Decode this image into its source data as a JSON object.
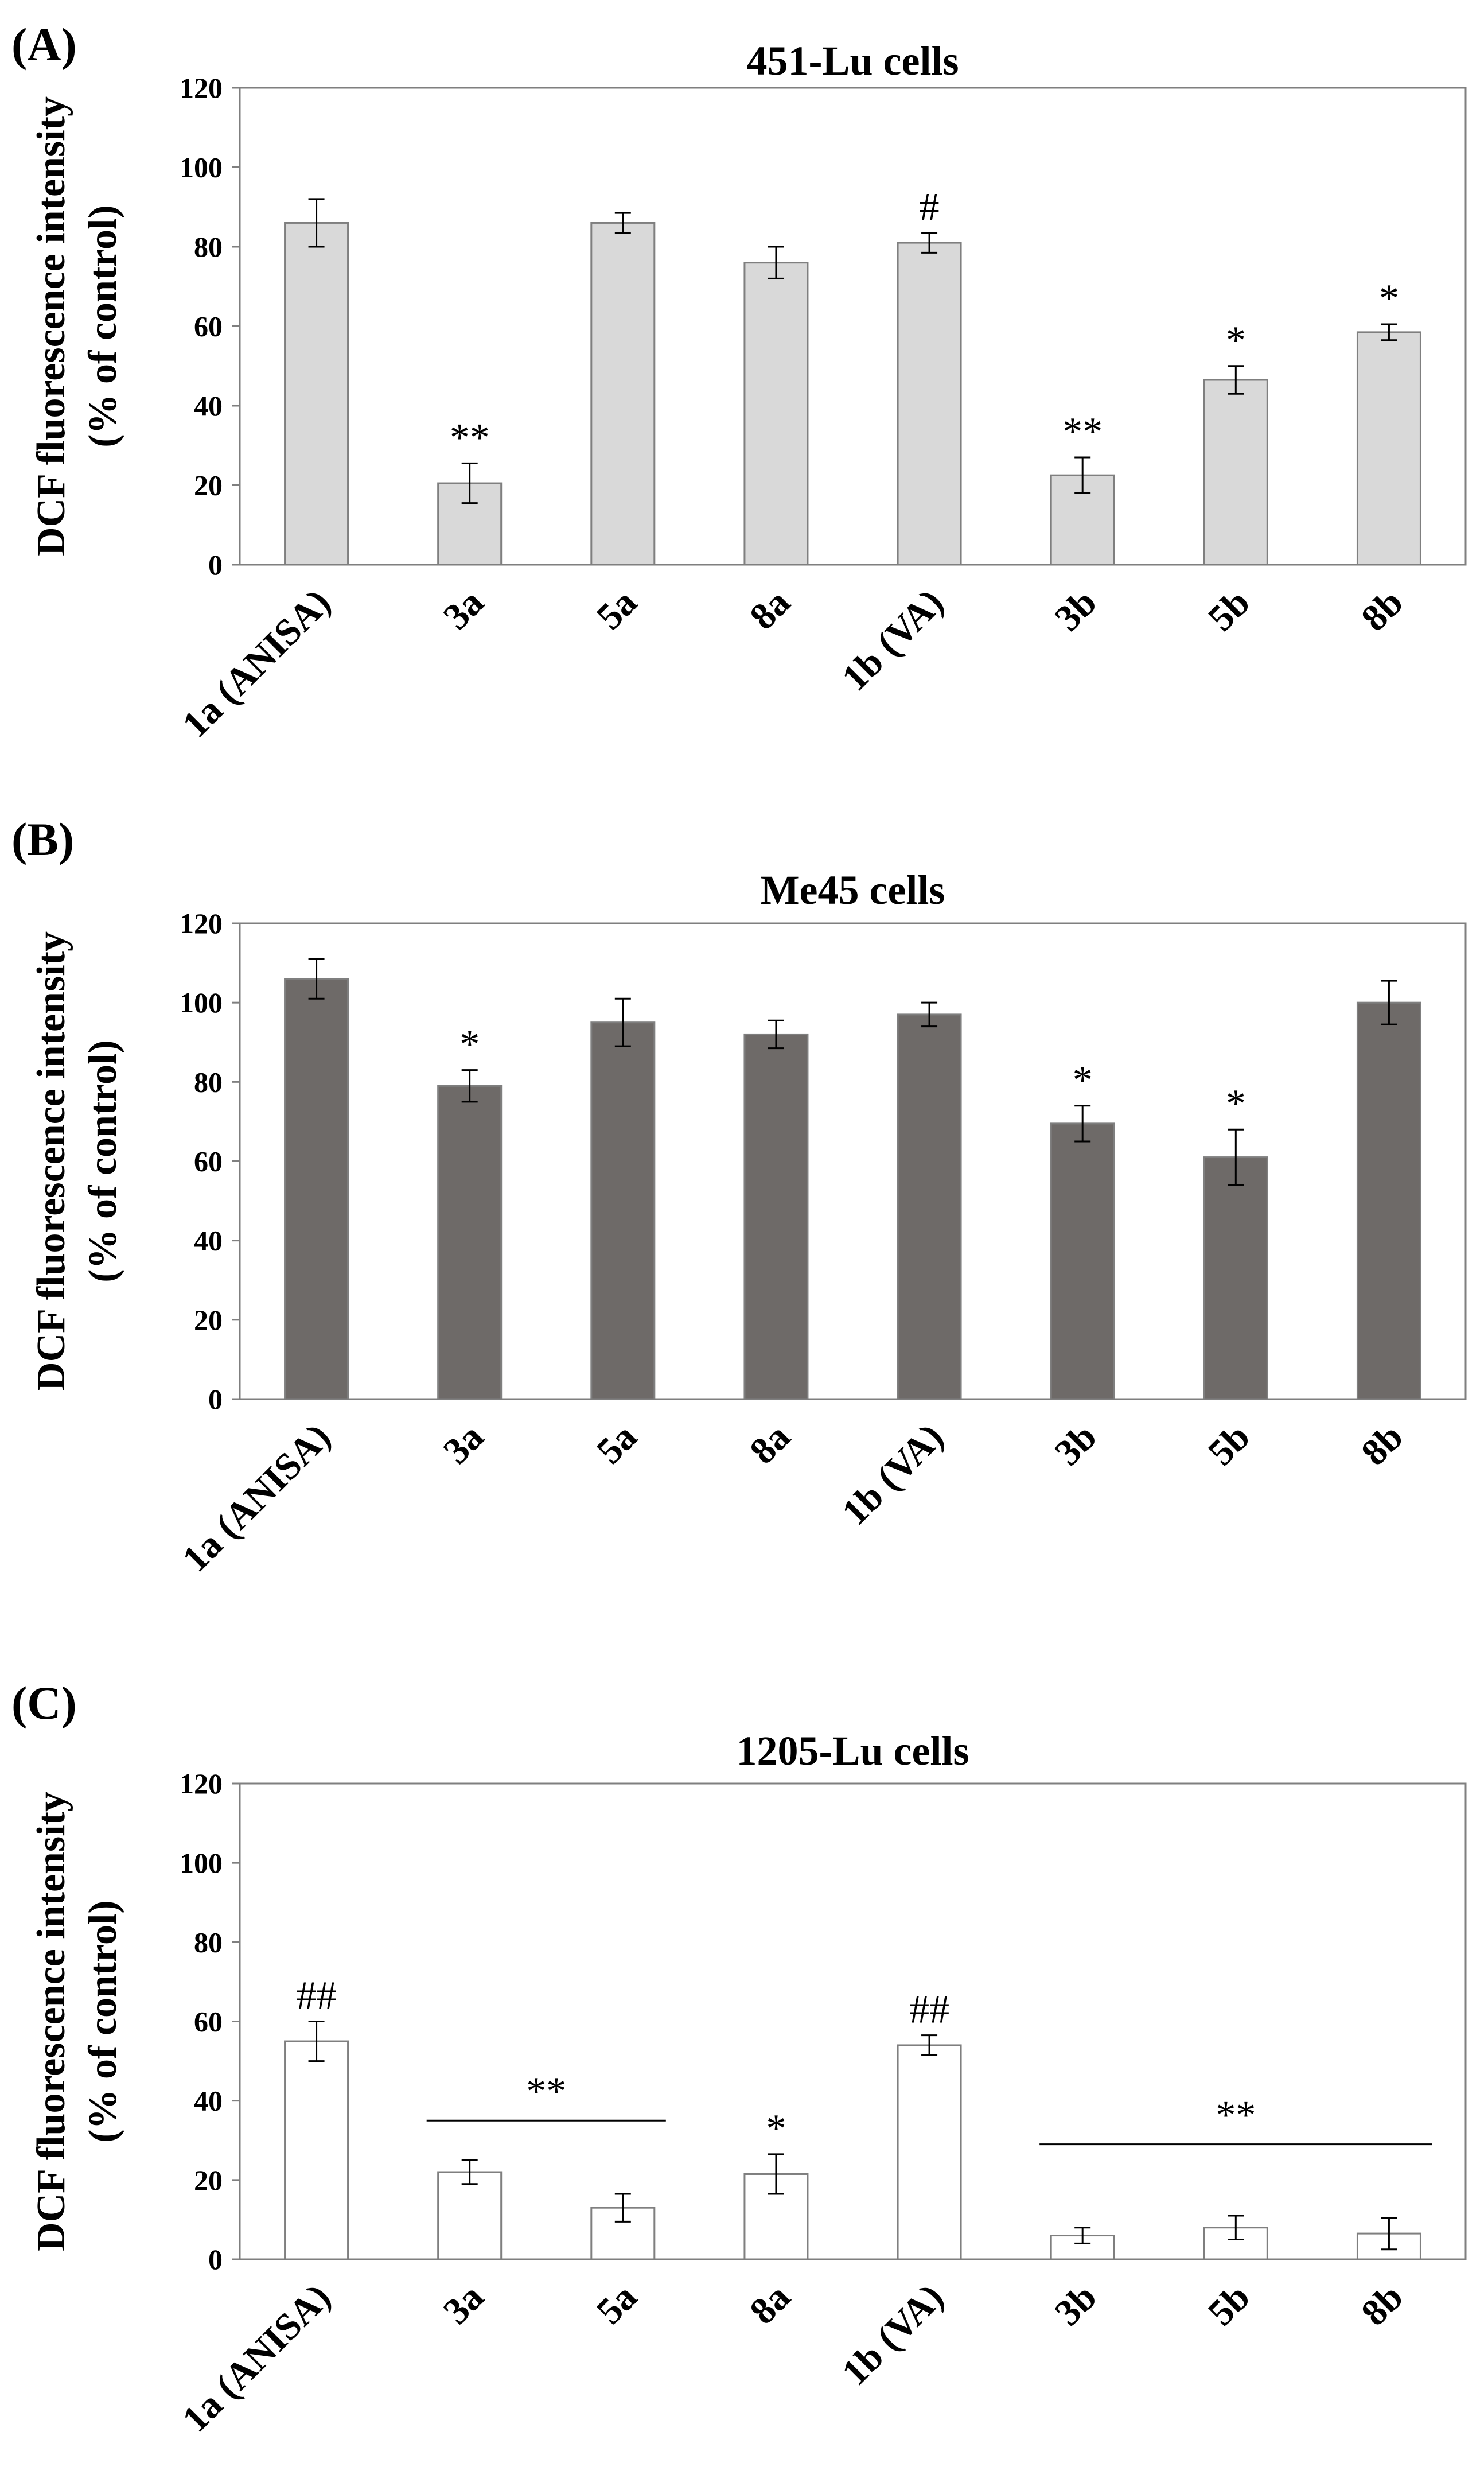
{
  "figure": {
    "panels": [
      "A",
      "B",
      "C"
    ]
  },
  "chart_data": [
    {
      "type": "bar",
      "panel_label": "(A)",
      "title": "451-Lu cells",
      "ylabel_line1": "DCF fluorescence intensity",
      "ylabel_line2": "(% of control)",
      "xlabel": "",
      "ylim": [
        0,
        120
      ],
      "yticks": [
        "0",
        "20",
        "40",
        "60",
        "80",
        "100",
        "120"
      ],
      "categories": [
        "1a (ANISA)",
        "3a",
        "5a",
        "8a",
        "1b (VA)",
        "3b",
        "5b",
        "8b"
      ],
      "values": [
        86,
        20.5,
        86,
        76,
        81,
        22.5,
        46.5,
        58.5
      ],
      "errors": [
        6,
        5,
        2.5,
        4,
        2.5,
        4.5,
        3.5,
        2
      ],
      "significance": [
        "",
        "**",
        "",
        "",
        "#",
        "**",
        "*",
        "*"
      ],
      "group_brackets": [],
      "bar_color": "#d9d9d9",
      "grid": false
    },
    {
      "type": "bar",
      "panel_label": "(B)",
      "title": "Me45 cells",
      "ylabel_line1": "DCF fluorescence intensity",
      "ylabel_line2": "(% of control)",
      "xlabel": "",
      "ylim": [
        0,
        120
      ],
      "yticks": [
        "0",
        "20",
        "40",
        "60",
        "80",
        "100",
        "120"
      ],
      "categories": [
        "1a (ANISA)",
        "3a",
        "5a",
        "8a",
        "1b (VA)",
        "3b",
        "5b",
        "8b"
      ],
      "values": [
        106,
        79,
        95,
        92,
        97,
        69.5,
        61,
        100
      ],
      "errors": [
        5,
        4,
        6,
        3.5,
        3,
        4.5,
        7,
        5.5
      ],
      "significance": [
        "",
        "*",
        "",
        "",
        "",
        "*",
        "*",
        ""
      ],
      "group_brackets": [],
      "bar_color": "#6e6a68",
      "grid": false
    },
    {
      "type": "bar",
      "panel_label": "(C)",
      "title": "1205-Lu cells",
      "ylabel_line1": "DCF fluorescence intensity",
      "ylabel_line2": "(% of control)",
      "xlabel": "",
      "ylim": [
        0,
        120
      ],
      "yticks": [
        "0",
        "20",
        "40",
        "60",
        "80",
        "100",
        "120"
      ],
      "categories": [
        "1a (ANISA)",
        "3a",
        "5a",
        "8a",
        "1b (VA)",
        "3b",
        "5b",
        "8b"
      ],
      "values": [
        55,
        22,
        13,
        21.5,
        54,
        6,
        8,
        6.5
      ],
      "errors": [
        5,
        3,
        3.5,
        5,
        2.5,
        2,
        3,
        4
      ],
      "significance": [
        "##",
        "",
        "",
        "*",
        "##",
        "",
        "",
        ""
      ],
      "group_brackets": [
        {
          "from": 1,
          "to": 2,
          "level": 35,
          "label": "**"
        },
        {
          "from": 5,
          "to": 7,
          "level": 29,
          "label": "**"
        }
      ],
      "bar_color": "#ffffff",
      "grid": false
    }
  ]
}
